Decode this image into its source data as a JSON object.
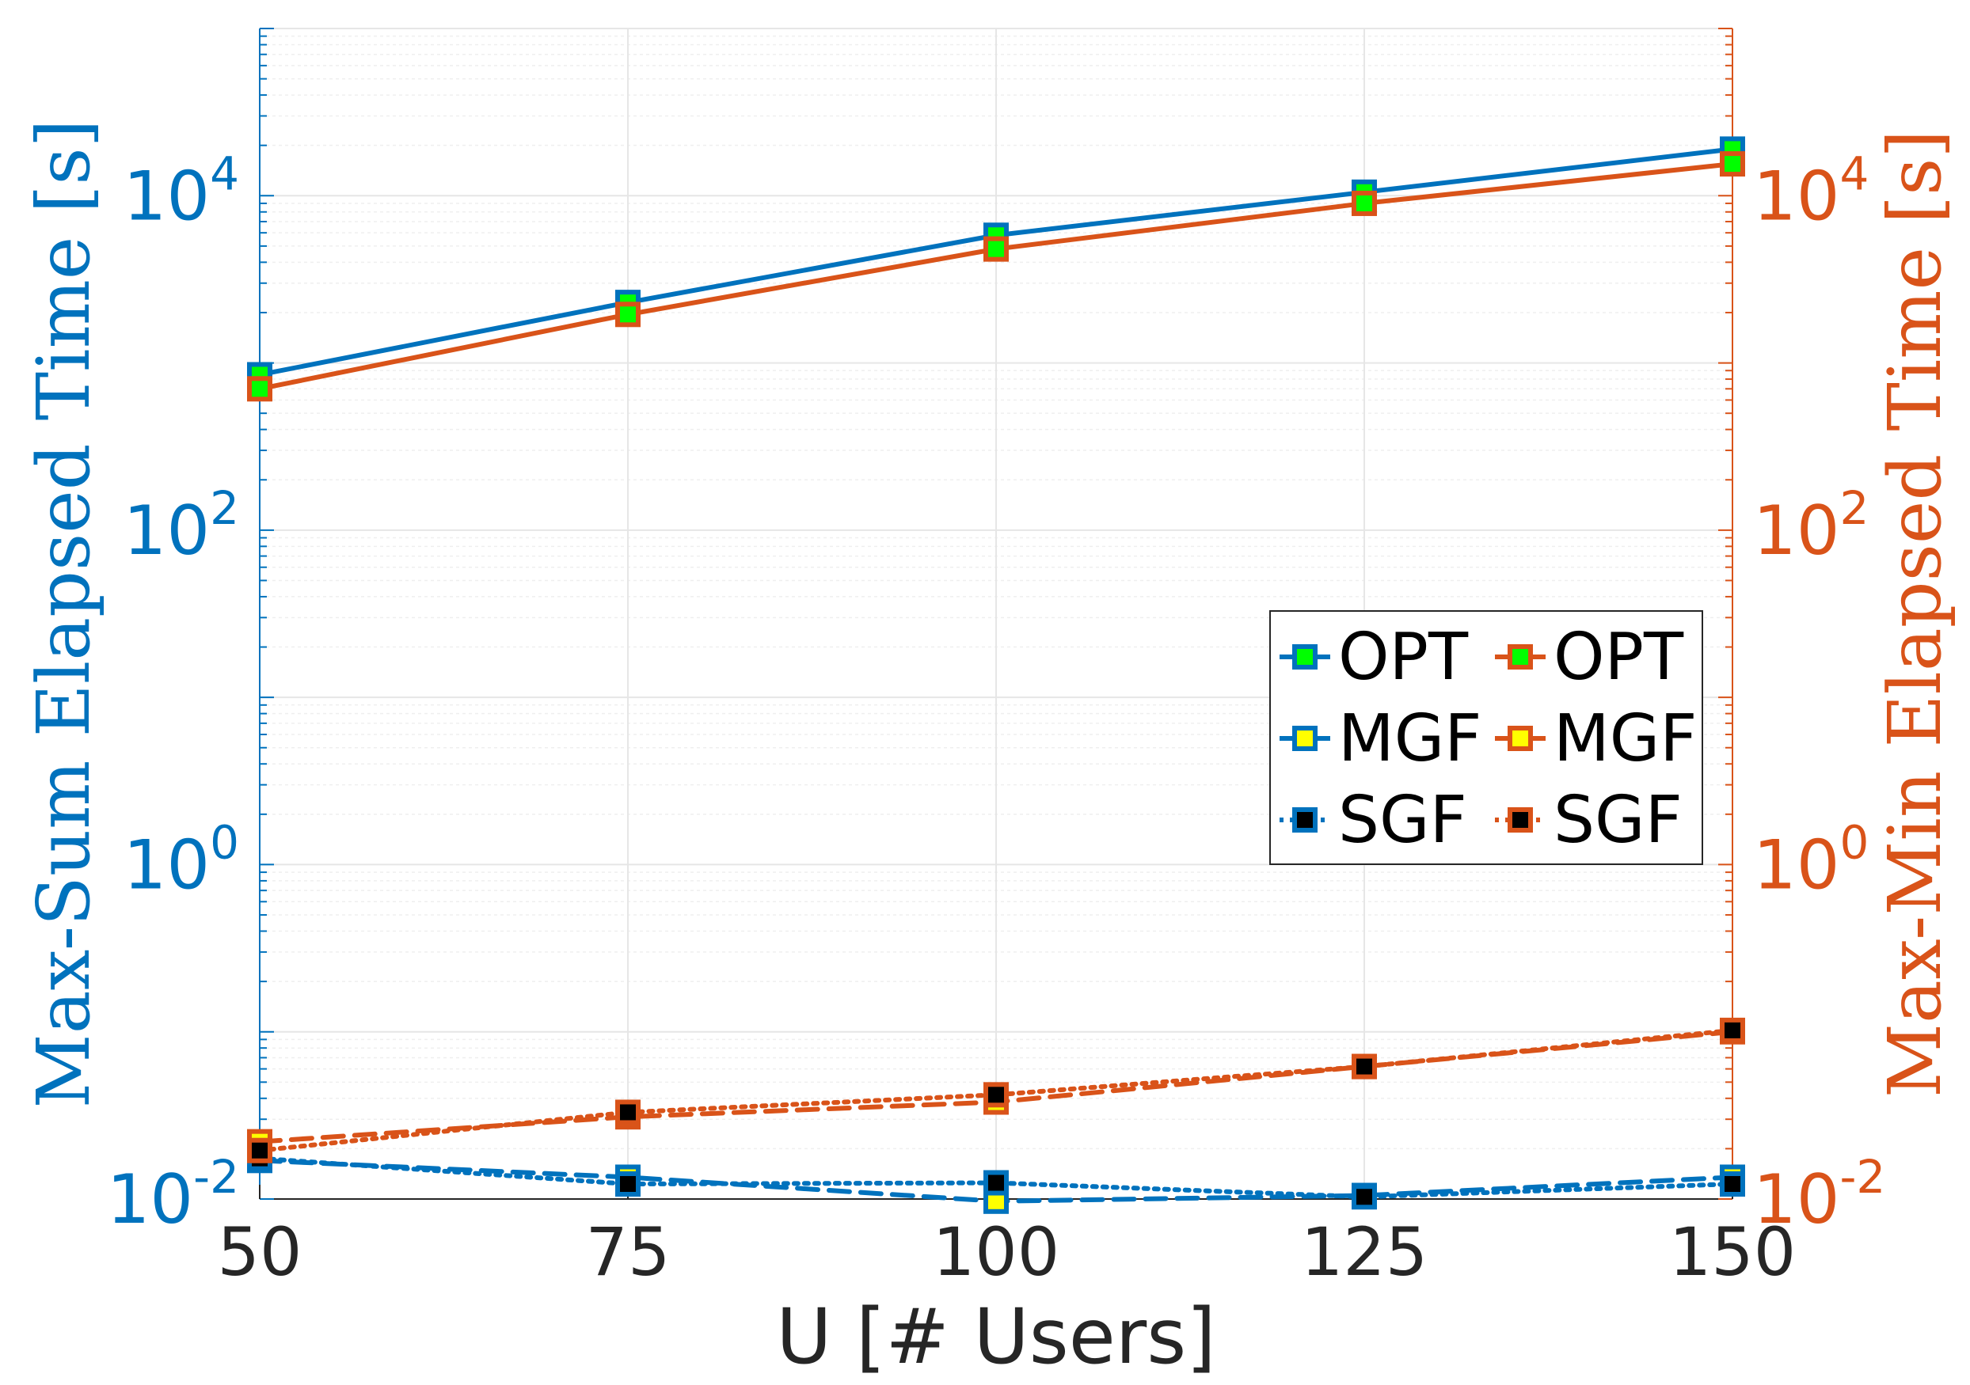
{
  "chart_data": {
    "type": "line",
    "xlabel": "U [# Users]",
    "ylabel_left": "Max-Sum Elapsed Time [s]",
    "ylabel_right": "Max-Min Elapsed Time [s]",
    "x": [
      50,
      75,
      100,
      125,
      150
    ],
    "x_ticks": [
      "50",
      "75",
      "100",
      "125",
      "150"
    ],
    "xlim": [
      50,
      150
    ],
    "y_scale": "log",
    "ylim_left": [
      0.01,
      100000
    ],
    "ylim_right": [
      0.01,
      100000
    ],
    "y_ticks_left": [
      {
        "value": 0.01,
        "base": "10",
        "exp": "-2"
      },
      {
        "value": 1,
        "base": "10",
        "exp": "0"
      },
      {
        "value": 100,
        "base": "10",
        "exp": "2"
      },
      {
        "value": 10000,
        "base": "10",
        "exp": "4"
      }
    ],
    "y_ticks_right": [
      {
        "value": 0.01,
        "base": "10",
        "exp": "-2"
      },
      {
        "value": 1,
        "base": "10",
        "exp": "0"
      },
      {
        "value": 100,
        "base": "10",
        "exp": "2"
      },
      {
        "value": 10000,
        "base": "10",
        "exp": "4"
      }
    ],
    "grid": true,
    "legend_position": "center-right",
    "colors": {
      "left_axis": "#0072BD",
      "right_axis": "#D95319",
      "opt_marker": "#00FF00",
      "mgf_marker": "#FFFF00",
      "sgf_marker": "#000000"
    },
    "series": [
      {
        "name": "OPT",
        "axis": "left",
        "style": "solid",
        "marker_fill": "#00FF00",
        "values": [
          850,
          2300,
          5800,
          10500,
          19000
        ]
      },
      {
        "name": "MGF",
        "axis": "left",
        "style": "dashed",
        "marker_fill": "#FFFF00",
        "values": [
          0.017,
          0.0135,
          0.0097,
          0.0105,
          0.0135
        ]
      },
      {
        "name": "SGF",
        "axis": "left",
        "style": "dotted",
        "marker_fill": "#000000",
        "values": [
          0.0175,
          0.0123,
          0.0125,
          0.0103,
          0.0123
        ]
      },
      {
        "name": "OPT",
        "axis": "right",
        "style": "solid",
        "marker_fill": "#00FF00",
        "values": [
          700,
          1950,
          4800,
          9000,
          15500
        ]
      },
      {
        "name": "MGF",
        "axis": "right",
        "style": "dashed",
        "marker_fill": "#FFFF00",
        "values": [
          0.022,
          0.031,
          0.038,
          0.062,
          0.1
        ]
      },
      {
        "name": "SGF",
        "axis": "right",
        "style": "dotted",
        "marker_fill": "#000000",
        "values": [
          0.0195,
          0.033,
          0.042,
          0.062,
          0.102
        ]
      }
    ]
  }
}
